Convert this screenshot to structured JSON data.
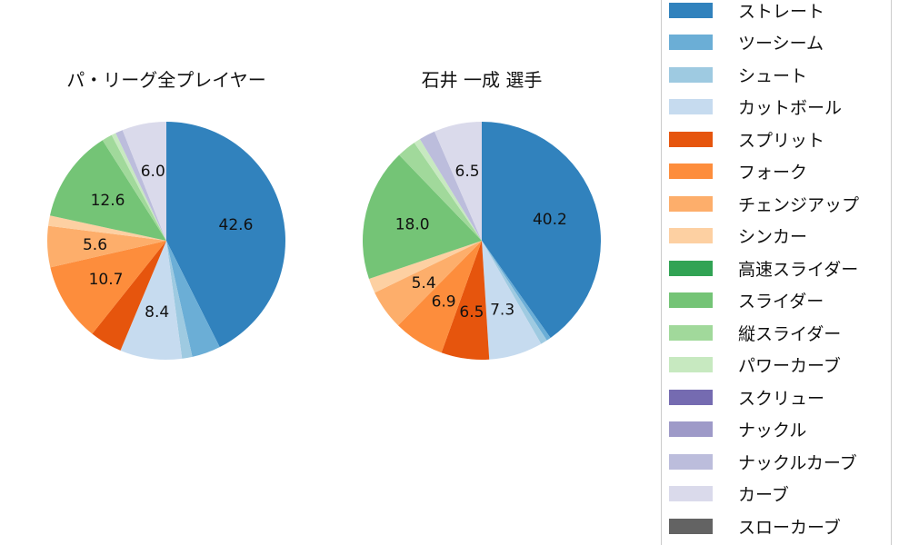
{
  "chart_data": [
    {
      "type": "pie",
      "title": "パ・リーグ全プレイヤー",
      "categories": [
        "ストレート",
        "ツーシーム",
        "シュート",
        "カットボール",
        "スプリット",
        "フォーク",
        "チェンジアップ",
        "シンカー",
        "スライダー",
        "縦スライダー",
        "パワーカーブ",
        "ナックルカーブ",
        "カーブ"
      ],
      "values": [
        42.6,
        3.9,
        1.4,
        8.4,
        4.4,
        10.7,
        5.6,
        1.4,
        12.6,
        1.4,
        0.6,
        1.0,
        6.0
      ],
      "labels_shown": [
        "42.6",
        "8.4",
        "10.7",
        "12.6"
      ]
    },
    {
      "type": "pie",
      "title": "石井 一成  選手",
      "categories": [
        "ストレート",
        "ツーシーム",
        "シュート",
        "カットボール",
        "スプリット",
        "フォーク",
        "チェンジアップ",
        "シンカー",
        "スライダー",
        "縦スライダー",
        "パワーカーブ",
        "ナックルカーブ",
        "カーブ"
      ],
      "values": [
        40.2,
        0.6,
        0.9,
        7.3,
        6.5,
        6.9,
        5.4,
        2.0,
        18.0,
        2.6,
        0.9,
        2.2,
        6.5
      ],
      "labels_shown": [
        "40.2",
        "7.3",
        "6.5",
        "6.9",
        "5.4",
        "18.0",
        "6.5"
      ]
    }
  ],
  "titles": {
    "left": "パ・リーグ全プレイヤー",
    "right": "石井 一成  選手"
  },
  "legend": [
    {
      "label": "ストレート",
      "color": "#3182bd"
    },
    {
      "label": "ツーシーム",
      "color": "#6baed6"
    },
    {
      "label": "シュート",
      "color": "#9ecae1"
    },
    {
      "label": "カットボール",
      "color": "#c6dbef"
    },
    {
      "label": "スプリット",
      "color": "#e6550d"
    },
    {
      "label": "フォーク",
      "color": "#fd8d3c"
    },
    {
      "label": "チェンジアップ",
      "color": "#fdae6b"
    },
    {
      "label": "シンカー",
      "color": "#fdd0a2"
    },
    {
      "label": "高速スライダー",
      "color": "#31a354"
    },
    {
      "label": "スライダー",
      "color": "#74c476"
    },
    {
      "label": "縦スライダー",
      "color": "#a1d99b"
    },
    {
      "label": "パワーカーブ",
      "color": "#c7e9c0"
    },
    {
      "label": "スクリュー",
      "color": "#756bb1"
    },
    {
      "label": "ナックル",
      "color": "#9e9ac8"
    },
    {
      "label": "ナックルカーブ",
      "color": "#bcbddc"
    },
    {
      "label": "カーブ",
      "color": "#dadaeb"
    },
    {
      "label": "スローカーブ",
      "color": "#636363"
    }
  ],
  "slice_colors": [
    "#3182bd",
    "#6baed6",
    "#9ecae1",
    "#c6dbef",
    "#e6550d",
    "#fd8d3c",
    "#fdae6b",
    "#fdd0a2",
    "#74c476",
    "#a1d99b",
    "#c7e9c0",
    "#bcbddc",
    "#dadaeb"
  ]
}
